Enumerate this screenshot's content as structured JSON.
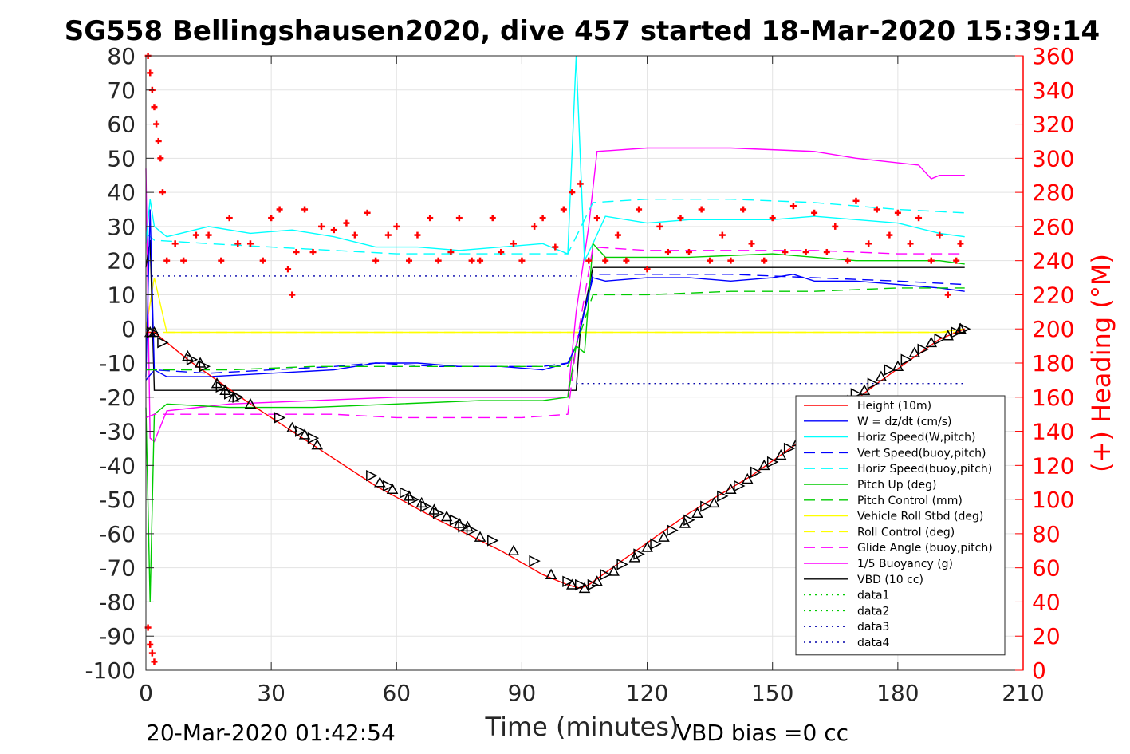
{
  "chart_data": {
    "type": "line",
    "title": "SG558 Bellingshausen2020, dive 457 started 18-Mar-2020 15:39:14",
    "xlabel": "Time (minutes)",
    "ylabel_right": "(+) Heading (°M)",
    "xlim": [
      0,
      210
    ],
    "ylim": [
      -100,
      80
    ],
    "ylim_right": [
      0,
      360
    ],
    "xticks": [
      "0",
      "30",
      "60",
      "90",
      "120",
      "150",
      "180",
      "210"
    ],
    "yticks_left": [
      "-100",
      "-90",
      "-80",
      "-70",
      "-60",
      "-50",
      "-40",
      "-30",
      "-20",
      "-10",
      "0",
      "10",
      "20",
      "30",
      "40",
      "50",
      "60",
      "70",
      "80"
    ],
    "yticks_right": [
      "0",
      "20",
      "40",
      "60",
      "80",
      "100",
      "120",
      "140",
      "160",
      "180",
      "200",
      "220",
      "240",
      "260",
      "280",
      "300",
      "320",
      "340",
      "360"
    ],
    "grid": true,
    "legend_position": "bottom-right",
    "footer_left": "20-Mar-2020 01:42:54",
    "footer_right": "VBD bias =0 cc",
    "series": [
      {
        "name": "Height (10m)",
        "color": "#ff0000",
        "style": "solid",
        "x": [
          0,
          2,
          10,
          25,
          40,
          55,
          70,
          85,
          95,
          101,
          104,
          106,
          115,
          130,
          145,
          160,
          175,
          190,
          196
        ],
        "y": [
          -1,
          -1,
          -9,
          -22,
          -34,
          -46,
          -56,
          -65,
          -72,
          -75,
          -76,
          -75,
          -67,
          -54,
          -43,
          -30,
          -16,
          -3,
          0
        ]
      },
      {
        "name": "W = dz/dt (cm/s)",
        "color": "#0000ff",
        "style": "solid",
        "x": [
          0,
          1,
          2,
          5,
          15,
          30,
          45,
          55,
          65,
          75,
          85,
          95,
          101,
          103,
          107,
          110,
          120,
          130,
          140,
          150,
          155,
          160,
          170,
          180,
          190,
          196
        ],
        "y": [
          -14,
          35,
          -12,
          -14,
          -14,
          -13,
          -12,
          -10,
          -10,
          -11,
          -11,
          -12,
          -10,
          -5,
          15,
          14,
          15,
          15,
          14,
          15,
          16,
          14,
          14,
          13,
          12,
          11
        ]
      },
      {
        "name": "Horiz Speed(W,pitch)",
        "color": "#00ffff",
        "style": "solid",
        "x": [
          0,
          1,
          2,
          5,
          15,
          25,
          35,
          45,
          55,
          65,
          75,
          85,
          95,
          101,
          103,
          105,
          107,
          110,
          120,
          130,
          140,
          150,
          160,
          170,
          180,
          190,
          196
        ],
        "y": [
          25,
          38,
          30,
          27,
          30,
          28,
          29,
          27,
          24,
          24,
          23,
          24,
          25,
          22,
          80,
          20,
          25,
          33,
          31,
          32,
          32,
          32,
          33,
          32,
          31,
          28,
          27
        ]
      },
      {
        "name": "Vert Speed(buoy,pitch)",
        "color": "#0000ff",
        "style": "dashed",
        "x": [
          0,
          2,
          15,
          30,
          45,
          55,
          70,
          85,
          95,
          101,
          103,
          107,
          120,
          140,
          160,
          180,
          196
        ],
        "y": [
          -15,
          -12,
          -13,
          -12,
          -11,
          -10,
          -11,
          -11,
          -11,
          -10,
          -5,
          16,
          16,
          16,
          15,
          14,
          13
        ]
      },
      {
        "name": "Horiz Speed(buoy,pitch)",
        "color": "#00ffff",
        "style": "dashed",
        "x": [
          0,
          2,
          15,
          30,
          45,
          60,
          75,
          90,
          101,
          103,
          107,
          120,
          140,
          160,
          180,
          196
        ],
        "y": [
          28,
          26,
          25,
          24,
          23,
          22,
          22,
          22,
          22,
          27,
          37,
          38,
          38,
          37,
          35,
          34
        ]
      },
      {
        "name": "Pitch Up (deg)",
        "color": "#00cc00",
        "style": "solid",
        "x": [
          0,
          1,
          2,
          5,
          20,
          40,
          60,
          80,
          95,
          101,
          103,
          105,
          107,
          110,
          130,
          150,
          170,
          190,
          196
        ],
        "y": [
          -23,
          -80,
          -25,
          -22,
          -23,
          -23,
          -22,
          -21,
          -21,
          -20,
          -5,
          -7,
          25,
          21,
          21,
          22,
          20,
          20,
          19
        ]
      },
      {
        "name": "Pitch Control (mm)",
        "color": "#00cc00",
        "style": "dashed",
        "x": [
          0,
          2,
          20,
          40,
          60,
          80,
          95,
          101,
          103,
          107,
          120,
          140,
          160,
          180,
          196
        ],
        "y": [
          -12,
          -12,
          -12,
          -11,
          -11,
          -11,
          -11,
          -11,
          -5,
          10,
          10,
          11,
          11,
          12,
          12
        ]
      },
      {
        "name": "Vehicle Roll Stbd (deg)",
        "color": "#ffff00",
        "style": "solid",
        "x": [
          0,
          2,
          5,
          10,
          30,
          50,
          70,
          90,
          101,
          105,
          110,
          130,
          150,
          170,
          190,
          196
        ],
        "y": [
          0,
          15,
          -1,
          -1,
          -1,
          -1,
          -1,
          -1,
          -1,
          -1,
          -1,
          -1,
          -1,
          -1,
          -1,
          0
        ]
      },
      {
        "name": "Roll Control (deg)",
        "color": "#ffff00",
        "style": "dashed",
        "x": [
          0,
          20,
          40,
          60,
          80,
          100,
          120,
          140,
          160,
          180,
          196
        ],
        "y": [
          -1,
          -1,
          -1,
          -1,
          -1,
          -1,
          -1,
          -1,
          -1,
          -1,
          -1
        ]
      },
      {
        "name": "Glide Angle (buoy,pitch)",
        "color": "#ff00ff",
        "style": "dashed",
        "x": [
          0,
          2,
          15,
          30,
          45,
          60,
          75,
          90,
          101,
          103,
          107,
          120,
          140,
          160,
          180,
          196
        ],
        "y": [
          -26,
          -25,
          -25,
          -25,
          -25,
          -26,
          -26,
          -26,
          -25,
          -5,
          24,
          23,
          23,
          23,
          22,
          22
        ]
      },
      {
        "name": "1/5 Buoyancy (g)",
        "color": "#ff00ff",
        "style": "solid",
        "x": [
          0,
          1,
          2,
          5,
          20,
          40,
          60,
          80,
          101,
          103,
          106,
          108,
          120,
          140,
          160,
          170,
          185,
          188,
          190,
          196
        ],
        "y": [
          47,
          -32,
          -33,
          -24,
          -22,
          -21,
          -20,
          -20,
          -20,
          5,
          30,
          52,
          53,
          53,
          52,
          50,
          48,
          44,
          45,
          45
        ]
      },
      {
        "name": "VBD (10 cc)",
        "color": "#000000",
        "style": "solid",
        "x": [
          0,
          1,
          2,
          103,
          104,
          107,
          190,
          196
        ],
        "y": [
          18,
          26,
          -18,
          -18,
          0,
          18,
          18,
          18
        ]
      },
      {
        "name": "data1",
        "color": "#00cc00",
        "style": "dotted",
        "x": [],
        "y": []
      },
      {
        "name": "data2",
        "color": "#00cc00",
        "style": "dotted",
        "x": [],
        "y": []
      },
      {
        "name": "data3",
        "color": "#0000aa",
        "style": "dotted",
        "x": [
          103,
          196
        ],
        "y": [
          -16,
          -16
        ]
      },
      {
        "name": "data4",
        "color": "#0000aa",
        "style": "dotted",
        "x": [
          0,
          103
        ],
        "y": [
          15.5,
          15.5
        ]
      }
    ],
    "heading_markers": {
      "color": "#ff0000",
      "marker": "+",
      "axis": "right",
      "x": [
        0.5,
        1,
        1.5,
        2,
        2.5,
        3,
        3.5,
        4,
        5,
        7,
        9,
        12,
        15,
        18,
        20,
        22,
        25,
        28,
        30,
        32,
        34,
        35,
        36,
        38,
        40,
        42,
        45,
        48,
        50,
        53,
        55,
        58,
        60,
        63,
        65,
        68,
        70,
        73,
        75,
        78,
        80,
        83,
        85,
        88,
        90,
        93,
        95,
        98,
        100,
        102,
        104,
        106,
        108,
        110,
        113,
        115,
        118,
        120,
        123,
        125,
        128,
        130,
        133,
        135,
        138,
        140,
        143,
        145,
        148,
        150,
        153,
        155,
        158,
        160,
        163,
        165,
        168,
        170,
        173,
        175,
        178,
        180,
        183,
        185,
        188,
        190,
        192,
        194,
        195
      ],
      "y": [
        360,
        350,
        340,
        330,
        320,
        310,
        300,
        280,
        240,
        250,
        240,
        255,
        255,
        240,
        265,
        250,
        250,
        240,
        265,
        270,
        235,
        220,
        245,
        270,
        245,
        260,
        258,
        262,
        255,
        268,
        240,
        255,
        260,
        240,
        255,
        265,
        240,
        245,
        265,
        240,
        240,
        265,
        245,
        250,
        240,
        260,
        265,
        248,
        270,
        280,
        285,
        240,
        265,
        240,
        255,
        240,
        270,
        235,
        260,
        245,
        265,
        245,
        270,
        240,
        255,
        240,
        270,
        250,
        240,
        265,
        245,
        272,
        245,
        268,
        245,
        260,
        240,
        275,
        250,
        270,
        255,
        268,
        250,
        265,
        240,
        255,
        220,
        240,
        250
      ]
    },
    "heading_markers_early": {
      "x": [
        0.5,
        1,
        1.5,
        2
      ],
      "y": [
        25,
        15,
        10,
        5
      ]
    },
    "depth_markers": {
      "color": "#000000",
      "marker": "triangle",
      "axis": "left",
      "x": [
        1,
        1.5,
        2,
        4,
        10,
        11,
        13,
        14,
        17,
        18,
        19,
        20,
        21,
        22,
        25,
        32,
        35,
        37,
        38,
        40,
        41,
        54,
        56,
        58,
        59,
        62,
        63,
        64,
        66,
        67,
        69,
        70,
        72,
        74,
        75,
        76,
        77,
        78,
        80,
        83,
        88,
        93,
        97,
        101,
        102,
        104,
        105,
        107,
        108,
        110,
        112,
        114,
        117,
        118,
        120,
        122,
        124,
        126,
        129,
        130,
        132,
        134,
        136,
        138,
        140,
        142,
        144,
        146,
        148,
        150,
        152,
        154,
        156,
        158,
        160,
        162,
        164,
        166,
        168,
        170,
        172,
        174,
        176,
        178,
        180,
        182,
        184,
        186,
        188,
        190,
        192,
        194,
        195,
        196
      ],
      "y": [
        -1,
        -1,
        -1,
        -4,
        -8,
        -9,
        -10,
        -11,
        -16,
        -17,
        -18,
        -19,
        -20,
        -20,
        -22,
        -26,
        -29,
        -30,
        -31,
        -32,
        -34,
        -43,
        -45,
        -46,
        -47,
        -48,
        -49,
        -50,
        -51,
        -52,
        -53,
        -54,
        -55,
        -56,
        -57,
        -58,
        -58,
        -59,
        -61,
        -62,
        -65,
        -68,
        -72,
        -74,
        -75,
        -75,
        -76,
        -75,
        -74,
        -72,
        -71,
        -69,
        -67,
        -66,
        -64,
        -63,
        -61,
        -59,
        -57,
        -56,
        -54,
        -52,
        -51,
        -49,
        -47,
        -46,
        -44,
        -42,
        -40,
        -39,
        -37,
        -35,
        -33,
        -31,
        -29,
        -27,
        -25,
        -23,
        -21,
        -19,
        -18,
        -16,
        -14,
        -12,
        -11,
        -9,
        -7,
        -6,
        -4,
        -3,
        -2,
        -1,
        0,
        0
      ]
    }
  }
}
